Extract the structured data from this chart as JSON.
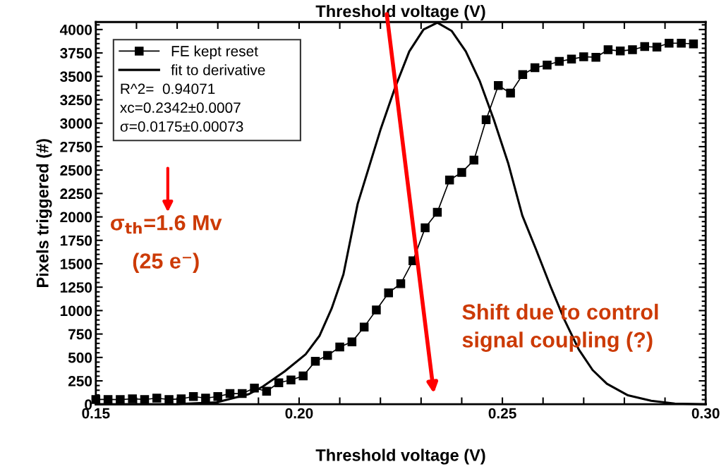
{
  "chart_data": {
    "type": "line",
    "xlabel": "Threshold voltage (V)",
    "ylabel": "Pixels triggered (#)",
    "x2label": "Threshold voltage (V)",
    "xlim": [
      0.15,
      0.3
    ],
    "ylim": [
      0,
      4080
    ],
    "xticks": [
      {
        "value": 0.15,
        "label": "0.15"
      },
      {
        "value": 0.16,
        "label": null
      },
      {
        "value": 0.17,
        "label": null
      },
      {
        "value": 0.18,
        "label": null
      },
      {
        "value": 0.19,
        "label": null
      },
      {
        "value": 0.2,
        "label": "0.20"
      },
      {
        "value": 0.21,
        "label": null
      },
      {
        "value": 0.22,
        "label": null
      },
      {
        "value": 0.23,
        "label": null
      },
      {
        "value": 0.24,
        "label": null
      },
      {
        "value": 0.25,
        "label": "0.25"
      },
      {
        "value": 0.26,
        "label": null
      },
      {
        "value": 0.27,
        "label": null
      },
      {
        "value": 0.28,
        "label": null
      },
      {
        "value": 0.29,
        "label": null
      },
      {
        "value": 0.3,
        "label": "0.30"
      }
    ],
    "yticks": [
      0,
      250,
      500,
      750,
      1000,
      1250,
      1500,
      1750,
      2000,
      2250,
      2500,
      2750,
      3000,
      3250,
      3500,
      3750,
      4000
    ],
    "legend": "top left",
    "grid": false,
    "series": [
      {
        "name": "FE kept reset",
        "color": "#000000",
        "marker": "square",
        "line_style": "solid",
        "x": [
          0.15,
          0.153,
          0.156,
          0.159,
          0.162,
          0.165,
          0.168,
          0.171,
          0.174,
          0.177,
          0.18,
          0.183,
          0.186,
          0.189,
          0.192,
          0.195,
          0.198,
          0.201,
          0.204,
          0.207,
          0.21,
          0.213,
          0.216,
          0.219,
          0.222,
          0.225,
          0.228,
          0.231,
          0.234,
          0.237,
          0.24,
          0.243,
          0.246,
          0.249,
          0.252,
          0.255,
          0.258,
          0.261,
          0.264,
          0.267,
          0.27,
          0.273,
          0.276,
          0.279,
          0.282,
          0.285,
          0.288,
          0.291,
          0.294,
          0.297
        ],
        "values": [
          51,
          51,
          50,
          58,
          51,
          66,
          51,
          58,
          83,
          66,
          83,
          114,
          114,
          173,
          139,
          229,
          260,
          302,
          460,
          521,
          611,
          667,
          825,
          1007,
          1190,
          1287,
          1531,
          1883,
          2050,
          2394,
          2475,
          2606,
          3037,
          3402,
          3321,
          3519,
          3592,
          3621,
          3660,
          3684,
          3709,
          3704,
          3785,
          3771,
          3785,
          3818,
          3813,
          3854,
          3854,
          3847
        ]
      },
      {
        "name": "fit to derivative",
        "color": "#000000",
        "marker": "none",
        "line_style": "solid",
        "x": [
          0.15,
          0.17,
          0.1797,
          0.1877,
          0.1911,
          0.1964,
          0.2016,
          0.205,
          0.208,
          0.2109,
          0.2144,
          0.2201,
          0.2236,
          0.2271,
          0.2306,
          0.234,
          0.2375,
          0.241,
          0.2444,
          0.2479,
          0.2514,
          0.2549,
          0.2583,
          0.2618,
          0.2653,
          0.2688,
          0.2722,
          0.2757,
          0.2809,
          0.2866,
          0.2924,
          0.3
        ],
        "values": [
          0,
          2,
          20,
          109,
          190,
          350,
          533,
          730,
          1022,
          1387,
          2139,
          2942,
          3380,
          3767,
          4000,
          4073,
          3986,
          3767,
          3453,
          3037,
          2577,
          2015,
          1650,
          1263,
          898,
          584,
          365,
          219,
          95,
          37,
          7,
          0
        ]
      }
    ],
    "annotations": [
      "R^2=  0.94071",
      "xc=0.2342±0.0007",
      "σ=0.0175±0.00073",
      "σ$_{th}$=1.6 Mv",
      "(25 e⁻)",
      "Shift due to control\nsignal coupling (?)"
    ]
  }
}
